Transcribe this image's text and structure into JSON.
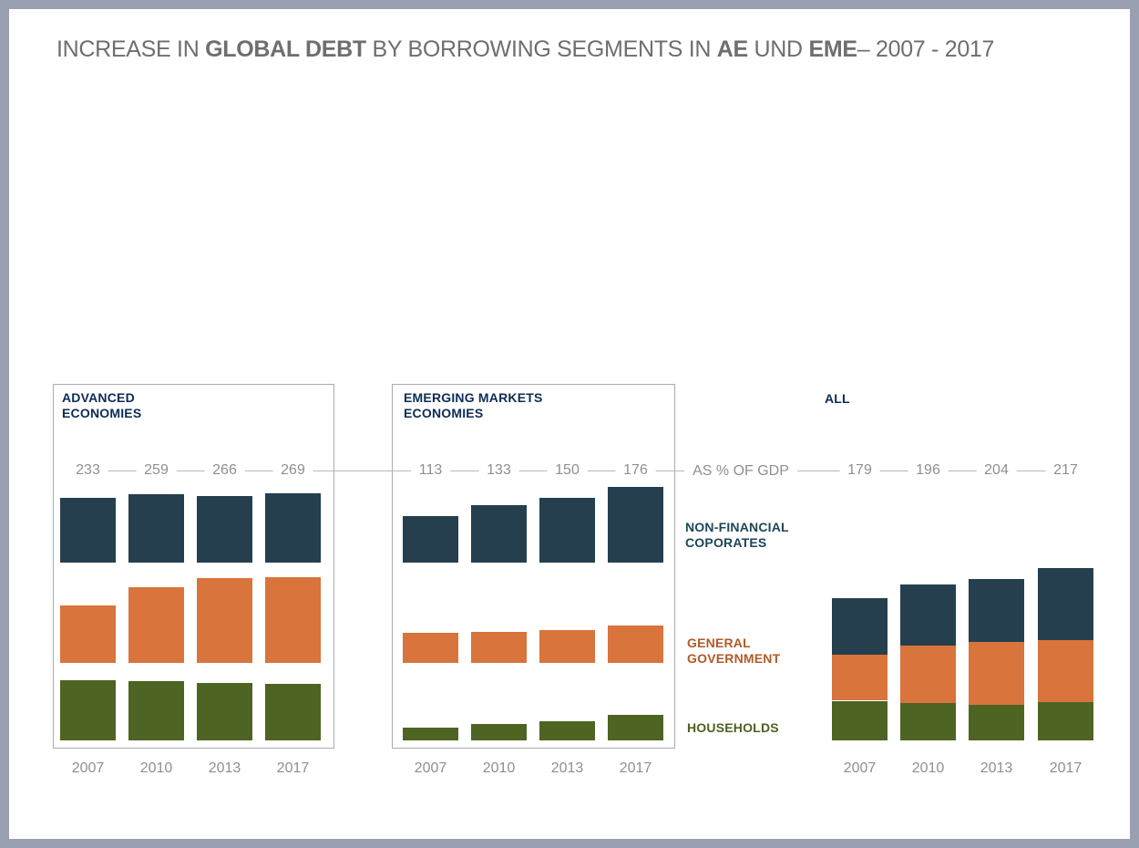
{
  "window": {
    "frame_color": "#98a0b1",
    "background": "#ffffff"
  },
  "title": {
    "text": "INCREASE IN GLOBAL DEBT BY BORROWING SEGMENTS IN AE UND EME– 2007 - 2017",
    "color": "#6d6e70",
    "parts": [
      {
        "text": "INCREASE IN ",
        "bold": false
      },
      {
        "text": "GLOBAL DEBT",
        "bold": true
      },
      {
        "text": " BY BORROWING SEGMENTS IN ",
        "bold": false
      },
      {
        "text": "AE",
        "bold": true
      },
      {
        "text": " UND ",
        "bold": false
      },
      {
        "text": "EME",
        "bold": true
      },
      {
        "text": "– 2007 - 2017",
        "bold": false
      }
    ]
  },
  "colors": {
    "panel_header": "#0d2c55",
    "axis_gray": "#b7b9bb",
    "value_text_gray": "#8d8f92",
    "box_border": "#aaacae",
    "non_financial_corporates": "#253f4e",
    "general_government": "#d8743c",
    "households": "#4e6423"
  },
  "axis": {
    "label": "AS % OF GDP"
  },
  "legend": {
    "nfc": {
      "lines": [
        "NON-FINANCIAL",
        "COPORATES"
      ],
      "color": "#1d4657"
    },
    "gg": {
      "lines": [
        "GENERAL",
        "GOVERNMENT"
      ],
      "color": "#b05a28"
    },
    "hh": {
      "lines": [
        "HOUSEHOLDS"
      ],
      "color": "#4c6220"
    }
  },
  "chart_data": [
    {
      "type": "bar",
      "variant": "grouped-rows",
      "boxed": true,
      "title_lines": [
        "ADVANCED",
        "ECONOMIES"
      ],
      "categories": [
        "2007",
        "2010",
        "2013",
        "2017"
      ],
      "totals": [
        233,
        259,
        266,
        269
      ],
      "ylabel": "AS % OF GDP",
      "series": [
        {
          "name": "NON-FINANCIAL COPORATES",
          "color": "#253f4e",
          "values": [
            83,
            87,
            85,
            88
          ]
        },
        {
          "name": "GENERAL GOVERNMENT",
          "color": "#d8743c",
          "values": [
            73,
            96,
            108,
            109
          ]
        },
        {
          "name": "HOUSEHOLDS",
          "color": "#4e6423",
          "values": [
            77,
            76,
            73,
            72
          ]
        }
      ]
    },
    {
      "type": "bar",
      "variant": "grouped-rows",
      "boxed": true,
      "title_lines": [
        "EMERGING MARKETS",
        "ECONOMIES"
      ],
      "categories": [
        "2007",
        "2010",
        "2013",
        "2017"
      ],
      "totals": [
        113,
        133,
        150,
        176
      ],
      "ylabel": "AS % OF GDP",
      "series": [
        {
          "name": "NON-FINANCIAL COPORATES",
          "color": "#253f4e",
          "values": [
            59,
            73,
            83,
            96
          ]
        },
        {
          "name": "GENERAL GOVERNMENT",
          "color": "#d8743c",
          "values": [
            38,
            39,
            42,
            48
          ]
        },
        {
          "name": "HOUSEHOLDS",
          "color": "#4e6423",
          "values": [
            16,
            21,
            25,
            32
          ]
        }
      ]
    },
    {
      "type": "bar",
      "variant": "stacked",
      "boxed": false,
      "title_lines": [
        "ALL"
      ],
      "categories": [
        "2007",
        "2010",
        "2013",
        "2017"
      ],
      "totals": [
        179,
        196,
        204,
        217
      ],
      "ylabel": "AS % OF GDP",
      "series": [
        {
          "name": "NON-FINANCIAL COPORATES",
          "color": "#253f4e",
          "values": [
            71,
            76,
            80,
            90
          ]
        },
        {
          "name": "GENERAL GOVERNMENT",
          "color": "#d8743c",
          "values": [
            58,
            73,
            79,
            79
          ]
        },
        {
          "name": "HOUSEHOLDS",
          "color": "#4e6423",
          "values": [
            50,
            47,
            45,
            48
          ]
        }
      ]
    }
  ]
}
